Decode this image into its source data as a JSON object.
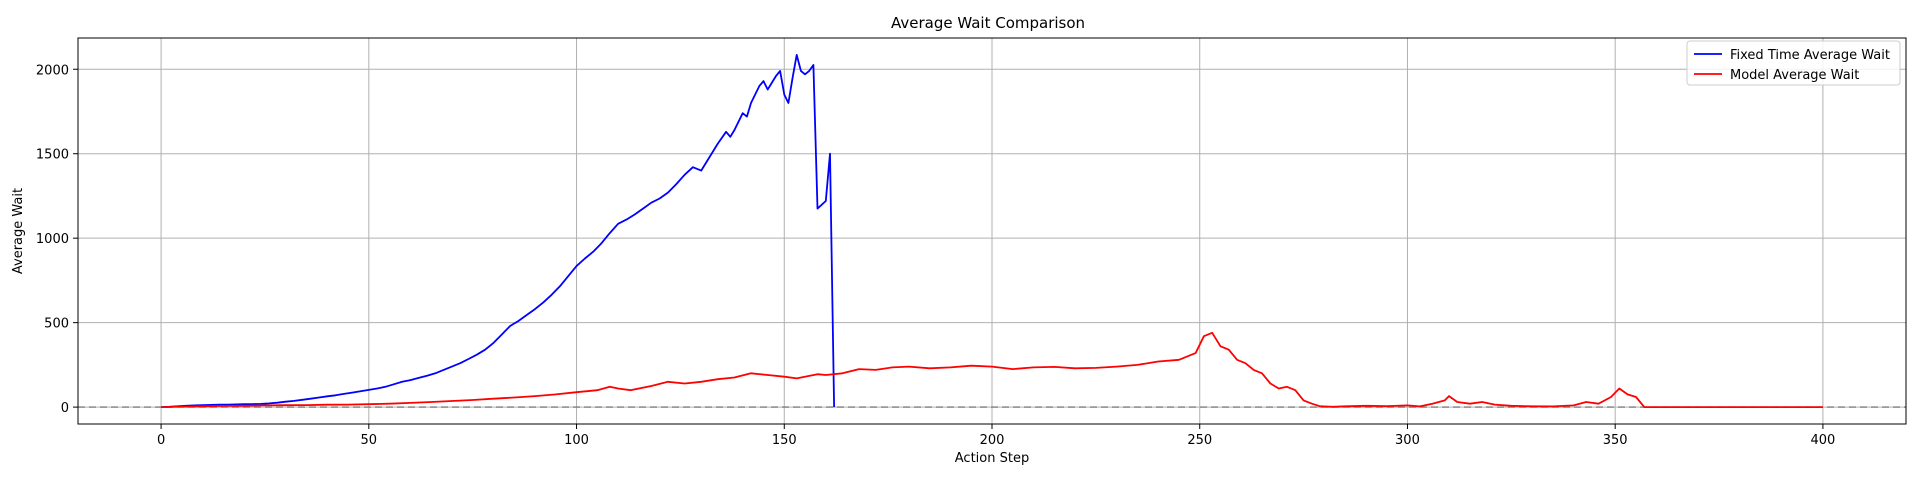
{
  "chart_data": {
    "type": "line",
    "title": "Average Wait Comparison",
    "xlabel": "Action Step",
    "ylabel": "Average Wait",
    "xlim": [
      -20,
      420
    ],
    "ylim": [
      -100,
      2185
    ],
    "x_ticks": [
      0,
      50,
      100,
      150,
      200,
      250,
      300,
      350,
      400
    ],
    "y_ticks": [
      0,
      500,
      1000,
      1500,
      2000
    ],
    "grid": true,
    "legend_position": "top-right",
    "reference_line": {
      "y": 0,
      "style": "dashed",
      "color": "#808080"
    },
    "series": [
      {
        "name": "Fixed Time Average Wait",
        "color": "#0000ff",
        "points": [
          [
            0,
            0
          ],
          [
            2,
            2
          ],
          [
            4,
            5
          ],
          [
            6,
            8
          ],
          [
            8,
            10
          ],
          [
            10,
            12
          ],
          [
            12,
            13
          ],
          [
            14,
            14
          ],
          [
            16,
            15
          ],
          [
            18,
            16
          ],
          [
            20,
            17
          ],
          [
            22,
            18
          ],
          [
            24,
            19
          ],
          [
            26,
            22
          ],
          [
            28,
            26
          ],
          [
            30,
            32
          ],
          [
            32,
            37
          ],
          [
            34,
            43
          ],
          [
            36,
            50
          ],
          [
            38,
            57
          ],
          [
            40,
            64
          ],
          [
            42,
            70
          ],
          [
            44,
            78
          ],
          [
            46,
            86
          ],
          [
            48,
            94
          ],
          [
            50,
            102
          ],
          [
            52,
            110
          ],
          [
            54,
            120
          ],
          [
            56,
            135
          ],
          [
            58,
            150
          ],
          [
            60,
            160
          ],
          [
            62,
            173
          ],
          [
            64,
            186
          ],
          [
            66,
            200
          ],
          [
            68,
            220
          ],
          [
            70,
            240
          ],
          [
            72,
            260
          ],
          [
            74,
            285
          ],
          [
            76,
            310
          ],
          [
            78,
            340
          ],
          [
            80,
            380
          ],
          [
            82,
            430
          ],
          [
            84,
            480
          ],
          [
            86,
            510
          ],
          [
            88,
            545
          ],
          [
            90,
            580
          ],
          [
            92,
            620
          ],
          [
            94,
            665
          ],
          [
            96,
            715
          ],
          [
            98,
            775
          ],
          [
            100,
            835
          ],
          [
            102,
            880
          ],
          [
            104,
            920
          ],
          [
            106,
            970
          ],
          [
            108,
            1030
          ],
          [
            110,
            1085
          ],
          [
            112,
            1110
          ],
          [
            114,
            1140
          ],
          [
            116,
            1175
          ],
          [
            118,
            1210
          ],
          [
            120,
            1235
          ],
          [
            122,
            1270
          ],
          [
            124,
            1320
          ],
          [
            126,
            1375
          ],
          [
            128,
            1420
          ],
          [
            130,
            1400
          ],
          [
            132,
            1480
          ],
          [
            134,
            1560
          ],
          [
            136,
            1630
          ],
          [
            137,
            1600
          ],
          [
            138,
            1640
          ],
          [
            140,
            1740
          ],
          [
            141,
            1720
          ],
          [
            142,
            1800
          ],
          [
            144,
            1900
          ],
          [
            145,
            1930
          ],
          [
            146,
            1880
          ],
          [
            148,
            1960
          ],
          [
            149,
            1990
          ],
          [
            150,
            1850
          ],
          [
            151,
            1800
          ],
          [
            152,
            1950
          ],
          [
            153,
            2085
          ],
          [
            154,
            1990
          ],
          [
            155,
            1970
          ],
          [
            156,
            1990
          ],
          [
            157,
            2025
          ],
          [
            158,
            1175
          ],
          [
            160,
            1220
          ],
          [
            161,
            1500
          ],
          [
            162,
            0
          ]
        ]
      },
      {
        "name": "Model Average Wait",
        "color": "#ff0000",
        "points": [
          [
            0,
            0
          ],
          [
            5,
            3
          ],
          [
            10,
            5
          ],
          [
            15,
            7
          ],
          [
            20,
            8
          ],
          [
            25,
            10
          ],
          [
            30,
            11
          ],
          [
            35,
            12
          ],
          [
            40,
            14
          ],
          [
            45,
            15
          ],
          [
            50,
            17
          ],
          [
            55,
            20
          ],
          [
            60,
            25
          ],
          [
            65,
            30
          ],
          [
            70,
            36
          ],
          [
            75,
            42
          ],
          [
            80,
            50
          ],
          [
            85,
            57
          ],
          [
            90,
            65
          ],
          [
            95,
            75
          ],
          [
            100,
            88
          ],
          [
            105,
            100
          ],
          [
            108,
            120
          ],
          [
            110,
            110
          ],
          [
            113,
            100
          ],
          [
            118,
            125
          ],
          [
            122,
            150
          ],
          [
            126,
            140
          ],
          [
            130,
            150
          ],
          [
            134,
            165
          ],
          [
            138,
            175
          ],
          [
            142,
            200
          ],
          [
            146,
            190
          ],
          [
            150,
            180
          ],
          [
            153,
            170
          ],
          [
            156,
            185
          ],
          [
            158,
            195
          ],
          [
            160,
            190
          ],
          [
            164,
            200
          ],
          [
            168,
            225
          ],
          [
            172,
            220
          ],
          [
            176,
            235
          ],
          [
            180,
            240
          ],
          [
            185,
            230
          ],
          [
            190,
            235
          ],
          [
            195,
            245
          ],
          [
            200,
            240
          ],
          [
            205,
            225
          ],
          [
            210,
            235
          ],
          [
            215,
            238
          ],
          [
            220,
            230
          ],
          [
            225,
            232
          ],
          [
            230,
            240
          ],
          [
            235,
            250
          ],
          [
            240,
            270
          ],
          [
            245,
            280
          ],
          [
            247,
            300
          ],
          [
            249,
            320
          ],
          [
            251,
            420
          ],
          [
            253,
            440
          ],
          [
            255,
            360
          ],
          [
            257,
            340
          ],
          [
            259,
            280
          ],
          [
            261,
            260
          ],
          [
            263,
            220
          ],
          [
            265,
            200
          ],
          [
            267,
            140
          ],
          [
            269,
            110
          ],
          [
            271,
            120
          ],
          [
            273,
            100
          ],
          [
            275,
            40
          ],
          [
            277,
            20
          ],
          [
            279,
            5
          ],
          [
            282,
            2
          ],
          [
            285,
            5
          ],
          [
            290,
            8
          ],
          [
            295,
            6
          ],
          [
            300,
            10
          ],
          [
            303,
            4
          ],
          [
            306,
            20
          ],
          [
            309,
            40
          ],
          [
            310,
            65
          ],
          [
            312,
            30
          ],
          [
            315,
            20
          ],
          [
            318,
            30
          ],
          [
            321,
            15
          ],
          [
            325,
            8
          ],
          [
            330,
            5
          ],
          [
            335,
            4
          ],
          [
            340,
            10
          ],
          [
            343,
            30
          ],
          [
            346,
            20
          ],
          [
            349,
            60
          ],
          [
            351,
            110
          ],
          [
            353,
            75
          ],
          [
            355,
            60
          ],
          [
            357,
            0
          ],
          [
            360,
            0
          ],
          [
            370,
            0
          ],
          [
            380,
            0
          ],
          [
            390,
            0
          ],
          [
            400,
            0
          ]
        ]
      }
    ]
  }
}
